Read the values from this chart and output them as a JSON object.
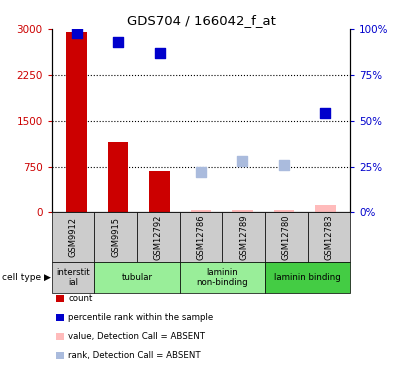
{
  "title": "GDS704 / 166042_f_at",
  "samples": [
    "GSM9912",
    "GSM9915",
    "GSM12792",
    "GSM12786",
    "GSM12789",
    "GSM12780",
    "GSM12783"
  ],
  "count_values": [
    2950,
    1150,
    680,
    30,
    35,
    30,
    120
  ],
  "count_absent": [
    false,
    false,
    false,
    true,
    true,
    true,
    true
  ],
  "rank_values": [
    98,
    93,
    87,
    22,
    28,
    26,
    54
  ],
  "rank_absent": [
    false,
    false,
    false,
    true,
    true,
    true,
    false
  ],
  "cell_type_groups": [
    {
      "label": "interstit\nial",
      "start": 0,
      "end": 0,
      "color": "#cccccc"
    },
    {
      "label": "tubular",
      "start": 1,
      "end": 2,
      "color": "#99ee99"
    },
    {
      "label": "laminin\nnon-binding",
      "start": 3,
      "end": 4,
      "color": "#99ee99"
    },
    {
      "label": "laminin binding",
      "start": 5,
      "end": 6,
      "color": "#44cc44"
    }
  ],
  "ylim_left": [
    0,
    3000
  ],
  "ylim_right": [
    0,
    100
  ],
  "yticks_left": [
    0,
    750,
    1500,
    2250,
    3000
  ],
  "ytick_labels_left": [
    "0",
    "750",
    "1500",
    "2250",
    "3000"
  ],
  "yticks_right": [
    0,
    25,
    50,
    75,
    100
  ],
  "ytick_labels_right": [
    "0%",
    "25%",
    "50%",
    "75%",
    "100%"
  ],
  "bar_color_present": "#cc0000",
  "bar_color_absent": "#ffbbbb",
  "dot_color_present": "#0000cc",
  "dot_color_absent": "#aabbdd",
  "dot_size": 55,
  "bar_width": 0.5,
  "legend_items": [
    {
      "color": "#cc0000",
      "label": "count"
    },
    {
      "color": "#0000cc",
      "label": "percentile rank within the sample"
    },
    {
      "color": "#ffbbbb",
      "label": "value, Detection Call = ABSENT"
    },
    {
      "color": "#aabbdd",
      "label": "rank, Detection Call = ABSENT"
    }
  ]
}
